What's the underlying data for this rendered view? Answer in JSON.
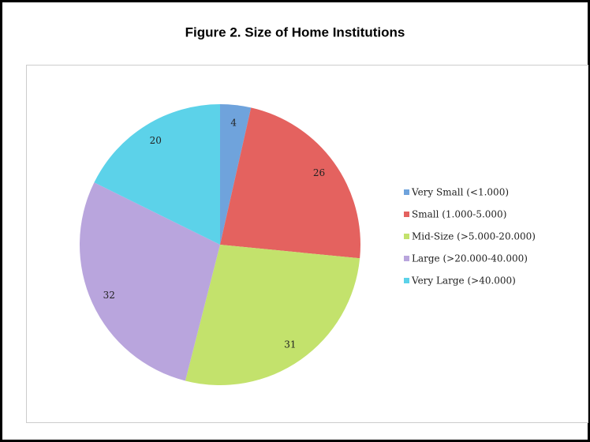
{
  "chart_data": {
    "type": "pie",
    "title": "Figure 2. Size of Home Institutions",
    "categories": [
      "Very Small (<1.000)",
      "Small (1.000-5.000)",
      "Mid-Size (>5.000-20.000)",
      "Large (>20.000-40.000)",
      "Very Large (>40.000)"
    ],
    "values": [
      4,
      26,
      31,
      32,
      20
    ],
    "colors": [
      "#6fa3dc",
      "#e4625f",
      "#c3e26c",
      "#b9a5dd",
      "#5cd2e9"
    ],
    "legend": "right"
  }
}
